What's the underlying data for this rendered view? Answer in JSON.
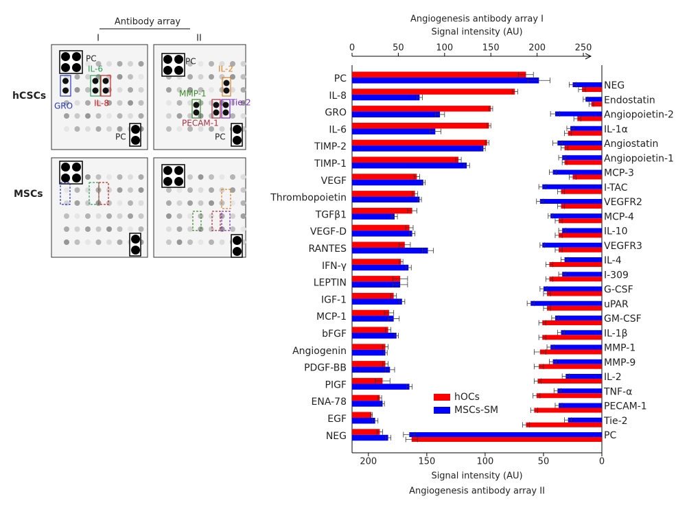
{
  "blot_panel": {
    "header": "Antibody array",
    "columns": [
      "I",
      "II"
    ],
    "rows": [
      "hCSCs",
      "MSCs"
    ],
    "labels": [
      "PC",
      "IL-6",
      "GRO",
      "IL-8",
      "PC",
      "PC",
      "IL-2",
      "MMP-1",
      "Tie-2",
      "PECAM-1",
      "PC"
    ]
  },
  "chart_data": [
    {
      "type": "bar",
      "orientation": "horizontal",
      "title": "Angiogenesis antibody array I",
      "x_label": "Signal intensity (AU)",
      "categories": [
        "PC",
        "IL-8",
        "GRO",
        "IL-6",
        "TIMP-2",
        "TIMP-1",
        "VEGF",
        "Thrombopoietin",
        "TGFβ1",
        "VEGF-D",
        "RANTES",
        "IFN-γ",
        "LEPTIN",
        "IGF-1",
        "MCP-1",
        "bFGF",
        "Angiogenin",
        "PDGF-BB",
        "PIGF",
        "ENA-78",
        "EGF",
        "NEG"
      ],
      "series": [
        {
          "name": "hOCs",
          "color": "#ff0000",
          "values": [
            188,
            176,
            150,
            148,
            146,
            115,
            70,
            68,
            65,
            62,
            57,
            53,
            52,
            45,
            40,
            39,
            36,
            36,
            33,
            30,
            21,
            30
          ],
          "errors": [
            8,
            3,
            2,
            2,
            2,
            3,
            3,
            3,
            5,
            4,
            6,
            2,
            8,
            3,
            5,
            3,
            3,
            3,
            8,
            2,
            1,
            3
          ]
        },
        {
          "name": "MSCs-SM",
          "color": "#0000ff",
          "values": [
            202,
            73,
            95,
            90,
            142,
            124,
            77,
            73,
            46,
            65,
            82,
            61,
            52,
            54,
            45,
            48,
            36,
            41,
            62,
            33,
            25,
            39
          ],
          "errors": [
            12,
            3,
            5,
            6,
            2,
            3,
            2,
            2,
            3,
            3,
            6,
            3,
            8,
            3,
            6,
            2,
            2,
            5,
            3,
            2,
            3,
            3
          ]
        }
      ],
      "xlim": [
        0,
        270
      ],
      "xticks": [
        0,
        50,
        100,
        150,
        200,
        250
      ]
    },
    {
      "type": "bar",
      "orientation": "horizontal",
      "title": "Angiogenesis antibody array II",
      "x_label": "Signal intensity (AU)",
      "categories": [
        "NEG",
        "Endostatin",
        "Angiopoietin-2",
        "IL-1α",
        "Angiostatin",
        "Angiopoietin-1",
        "MCP-3",
        "I-TAC",
        "VEGFR2",
        "MCP-4",
        "IL-10",
        "VEGFR3",
        "IL-4",
        "I-309",
        "G-CSF",
        "uPAR",
        "GM-CSF",
        "IL-1β",
        "MMP-1",
        "MMP-9",
        "IL-2",
        "TNF-α",
        "PECAM-1",
        "Tie-2",
        "PC"
      ],
      "series": [
        {
          "color": "#0000ff",
          "values": [
            25,
            14,
            40,
            27,
            38,
            34,
            42,
            51,
            53,
            44,
            34,
            51,
            32,
            34,
            50,
            61,
            40,
            35,
            44,
            42,
            31,
            38,
            37,
            29,
            165
          ],
          "errors": [
            3,
            2,
            4,
            3,
            4,
            3,
            3,
            3,
            3,
            2,
            3,
            2,
            3,
            3,
            3,
            3,
            3,
            3,
            3,
            3,
            3,
            3,
            3,
            3,
            5
          ]
        },
        {
          "color": "#ff0000",
          "values": [
            17,
            9,
            21,
            29,
            32,
            32,
            25,
            35,
            35,
            37,
            37,
            37,
            45,
            45,
            47,
            47,
            51,
            51,
            53,
            54,
            55,
            56,
            58,
            65,
            163
          ],
          "errors": [
            3,
            2,
            3,
            3,
            3,
            2,
            3,
            3,
            3,
            3,
            3,
            3,
            3,
            3,
            3,
            3,
            3,
            3,
            5,
            4,
            3,
            3,
            3,
            3,
            5
          ]
        }
      ],
      "xlim": [
        214,
        0
      ],
      "xticks": [
        200,
        150,
        100,
        50,
        0
      ]
    }
  ]
}
